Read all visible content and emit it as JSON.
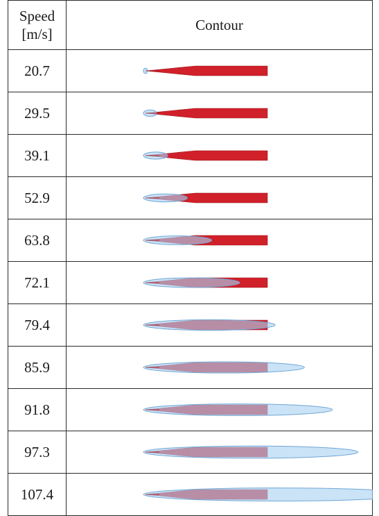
{
  "table": {
    "header": {
      "speed_line1": "Speed",
      "speed_line2": "[m/s]",
      "contour": "Contour"
    },
    "colors": {
      "body": "#d0202a",
      "body_dark": "#9c1a20",
      "cavity": "#a9d2f2",
      "cavity_edge": "#6fa6d4"
    },
    "rows": [
      {
        "speed": "20.7",
        "cavity_fraction": 0.03
      },
      {
        "speed": "29.5",
        "cavity_fraction": 0.11
      },
      {
        "speed": "39.1",
        "cavity_fraction": 0.2
      },
      {
        "speed": "52.9",
        "cavity_fraction": 0.36
      },
      {
        "speed": "63.8",
        "cavity_fraction": 0.56
      },
      {
        "speed": "72.1",
        "cavity_fraction": 0.79
      },
      {
        "speed": "79.4",
        "cavity_fraction": 1.08
      },
      {
        "speed": "85.9",
        "cavity_fraction": 1.32
      },
      {
        "speed": "91.8",
        "cavity_fraction": 1.55
      },
      {
        "speed": "97.3",
        "cavity_fraction": 1.76
      },
      {
        "speed": "107.4",
        "cavity_fraction": 2.2
      }
    ]
  }
}
